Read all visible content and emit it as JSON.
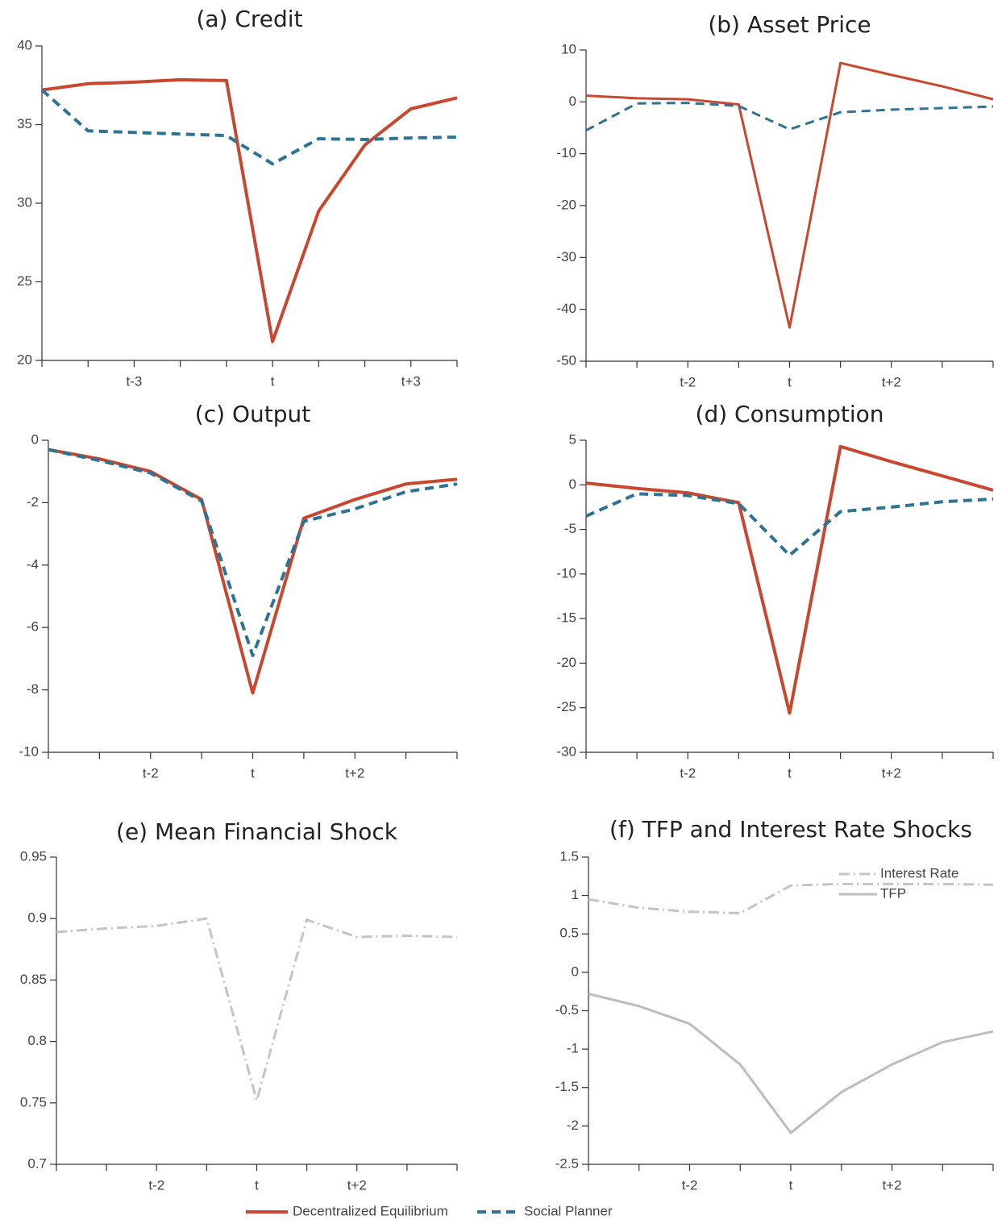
{
  "chart_data": [
    {
      "type": "line",
      "title": "(a) Credit",
      "categories": [
        null,
        null,
        "t-3",
        null,
        null,
        "t",
        null,
        null,
        "t+3",
        null
      ],
      "ylim": [
        20,
        40
      ],
      "yticks": [
        20,
        25,
        30,
        35,
        40
      ],
      "series": [
        {
          "name": "Decentralized Equilibrium",
          "color": "#c8472f",
          "style": "solid",
          "values": [
            37.2,
            37.6,
            37.7,
            37.85,
            37.8,
            21.2,
            29.5,
            33.7,
            36.0,
            36.7
          ]
        },
        {
          "name": "Social Planner",
          "color": "#2d7396",
          "style": "dashed",
          "values": [
            37.2,
            34.6,
            34.5,
            34.4,
            34.3,
            32.5,
            34.1,
            34.05,
            34.15,
            34.2
          ]
        }
      ]
    },
    {
      "type": "line",
      "title": "(b) Asset Price",
      "categories": [
        null,
        null,
        "t-2",
        null,
        "t",
        null,
        "t+2",
        null,
        null
      ],
      "ylim": [
        -50,
        10
      ],
      "yticks": [
        -50,
        -40,
        -30,
        -20,
        -10,
        0,
        10
      ],
      "series": [
        {
          "name": "Decentralized Equilibrium",
          "color": "#c8472f",
          "style": "solid",
          "values": [
            1.2,
            0.7,
            0.5,
            -0.5,
            -43.5,
            7.5,
            5.2,
            3.0,
            0.5
          ]
        },
        {
          "name": "Social Planner",
          "color": "#2d7396",
          "style": "dashed",
          "values": [
            -5.5,
            -0.3,
            -0.2,
            -0.8,
            -5.3,
            -2.0,
            -1.5,
            -1.2,
            -0.9
          ]
        }
      ]
    },
    {
      "type": "line",
      "title": "(c) Output",
      "categories": [
        null,
        null,
        "t-2",
        null,
        "t",
        null,
        "t+2",
        null,
        null
      ],
      "ylim": [
        -10,
        0
      ],
      "yticks": [
        -10,
        -8,
        -6,
        -4,
        -2,
        0
      ],
      "series": [
        {
          "name": "Decentralized Equilibrium",
          "color": "#c8472f",
          "style": "solid",
          "values": [
            -0.3,
            -0.6,
            -1.0,
            -1.9,
            -8.1,
            -2.5,
            -1.9,
            -1.4,
            -1.25
          ]
        },
        {
          "name": "Social Planner",
          "color": "#2d7396",
          "style": "dashed",
          "values": [
            -0.3,
            -0.65,
            -1.05,
            -1.95,
            -6.9,
            -2.6,
            -2.2,
            -1.65,
            -1.4
          ]
        }
      ]
    },
    {
      "type": "line",
      "title": "(d) Consumption",
      "categories": [
        null,
        null,
        "t-2",
        null,
        "t",
        null,
        "t+2",
        null,
        null
      ],
      "ylim": [
        -30,
        5
      ],
      "yticks": [
        -30,
        -25,
        -20,
        -15,
        -10,
        -5,
        0,
        5
      ],
      "series": [
        {
          "name": "Decentralized Equilibrium",
          "color": "#c8472f",
          "style": "solid",
          "values": [
            0.2,
            -0.4,
            -0.9,
            -2.0,
            -25.6,
            4.3,
            2.6,
            1.0,
            -0.6
          ]
        },
        {
          "name": "Social Planner",
          "color": "#2d7396",
          "style": "dashed",
          "values": [
            -3.5,
            -1.0,
            -1.2,
            -2.1,
            -7.9,
            -3.0,
            -2.5,
            -1.9,
            -1.6
          ]
        }
      ]
    },
    {
      "type": "line",
      "title": "(e) Mean Financial Shock",
      "categories": [
        null,
        null,
        "t-2",
        null,
        "t",
        null,
        "t+2",
        null,
        null
      ],
      "ylim": [
        0.7,
        0.95
      ],
      "yticks": [
        0.7,
        0.75,
        0.8,
        0.85,
        0.9,
        0.95
      ],
      "color": "#c4c4c4",
      "style": "dashdot",
      "values": [
        0.889,
        0.892,
        0.894,
        0.9,
        0.752,
        0.899,
        0.885,
        0.886,
        0.885
      ]
    },
    {
      "type": "line",
      "title": "(f) TFP and Interest Rate Shocks",
      "categories": [
        null,
        null,
        "t-2",
        null,
        "t",
        null,
        "t+2",
        null,
        null
      ],
      "ylim": [
        -2.5,
        1.5
      ],
      "yticks": [
        -2.5,
        -2,
        -1.5,
        -1,
        -0.5,
        0,
        0.5,
        1,
        1.5
      ],
      "legend": "upper right",
      "series": [
        {
          "name": "Interest Rate",
          "color": "#c4c4c4",
          "style": "dashdot",
          "values": [
            0.95,
            0.84,
            0.79,
            0.77,
            1.13,
            1.15,
            1.15,
            1.15,
            1.14
          ]
        },
        {
          "name": "TFP",
          "color": "#bdbdbd",
          "style": "solid",
          "values": [
            -0.28,
            -0.44,
            -0.67,
            -1.2,
            -2.09,
            -1.56,
            -1.2,
            -0.91,
            -0.77
          ]
        }
      ]
    }
  ]
}
